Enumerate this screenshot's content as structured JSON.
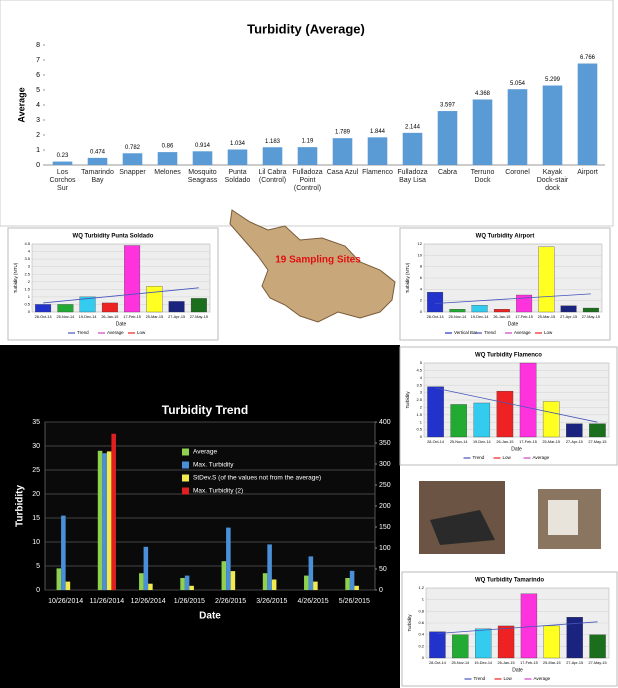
{
  "chart_data": [
    {
      "type": "bar",
      "title": "Turbidity (Average)",
      "y_label": "Average",
      "color": "#5b9bd5",
      "categories": [
        "Los Corchos Sur",
        "Tamarindo Bay",
        "Snapper",
        "Melones",
        "Mosquito Seagrass",
        "Punta Soldado",
        "Lil Cabra (Control)",
        "Fulladoza Point (Control)",
        "Casa Azul",
        "Flamenco",
        "Fulladoza Bay Lisa",
        "Cabra",
        "Terruno Dock",
        "Coronel",
        "Kayak Dock-stair dock",
        "Airport"
      ],
      "values": [
        0.23,
        0.474,
        0.782,
        0.86,
        0.914,
        1.034,
        1.183,
        1.19,
        1.789,
        1.844,
        2.144,
        3.597,
        4.368,
        5.054,
        5.299,
        6.766
      ],
      "ylim": [
        0,
        8
      ],
      "yticks": [
        0,
        1,
        2,
        3,
        4,
        5,
        6,
        7,
        8
      ]
    },
    {
      "type": "grouped_bar",
      "title": "Turbidity Trend",
      "x_label": "Date",
      "y_label": "Turbidity",
      "categories": [
        "10/26/2014",
        "11/26/2014",
        "12/26/2014",
        "1/26/2015",
        "2/26/2015",
        "3/26/2015",
        "4/26/2015",
        "5/26/2015"
      ],
      "series": [
        {
          "name": "Average",
          "color": "#8fd14f",
          "values": [
            4.5,
            29,
            3.5,
            2.5,
            6,
            3.5,
            3,
            2.5
          ]
        },
        {
          "name": "Max. Turbidity",
          "color": "#4a90d9",
          "values": [
            15.5,
            28.5,
            9,
            3,
            13,
            9.5,
            7,
            4
          ]
        },
        {
          "name": "StDev.S (of the values not from the average)",
          "color": "#f2e94e",
          "axis": "y2",
          "values": [
            20,
            330,
            15,
            10,
            45,
            25,
            20,
            10
          ]
        },
        {
          "name": "Max. Turbidity (2)",
          "color": "#e02020",
          "axis": "y2",
          "values": [
            null,
            372,
            null,
            null,
            null,
            null,
            null,
            null
          ]
        }
      ],
      "ylim": [
        0,
        35
      ],
      "yticks": [
        0,
        5,
        10,
        15,
        20,
        25,
        30,
        35
      ],
      "y2lim": [
        0,
        400
      ],
      "y2ticks": [
        0,
        50,
        100,
        150,
        200,
        250,
        300,
        350,
        400
      ],
      "grid": true
    },
    {
      "type": "bar",
      "title": "WQ Turbidity Punta Soldado",
      "x_label": "Date",
      "y_label": "Turbidity (NTU)",
      "categories": [
        "28-Oct-14",
        "25-Nov-14",
        "19-Dec-14",
        "26-Jan-15",
        "17-Feb-15",
        "25-Mar-15",
        "27-Apr-15",
        "27-May-15"
      ],
      "values": [
        0.5,
        0.5,
        1.0,
        0.6,
        4.4,
        1.7,
        0.7,
        0.9
      ],
      "colors": [
        "#2233cc",
        "#22aa33",
        "#33ccee",
        "#ee2222",
        "#ff33dd",
        "#ffff22",
        "#1a237e",
        "#1b6e1b"
      ],
      "ylim": [
        0,
        4.5
      ],
      "yticks": [
        0,
        0.5,
        1,
        1.5,
        2,
        2.5,
        3,
        3.5,
        4,
        4.5
      ],
      "trend": [
        0.6,
        1.6
      ],
      "legend": [
        "Trend",
        "Average",
        "Low"
      ],
      "legend_colors": [
        "#4455bb",
        "#cc44cc",
        "#ee2222"
      ]
    },
    {
      "type": "bar",
      "title": "WQ Turbidity Airport",
      "x_label": "Date",
      "y_label": "Turbidity (NTU)",
      "categories": [
        "28-Oct-14",
        "25-Nov-14",
        "19-Dec-14",
        "26-Jan-15",
        "17-Feb-15",
        "25-Mar-15",
        "27-Apr-15",
        "27-May-15"
      ],
      "values": [
        3.5,
        0.5,
        1.2,
        0.5,
        3.0,
        11.5,
        1.1,
        0.7
      ],
      "colors": [
        "#2233cc",
        "#22aa33",
        "#33ccee",
        "#ee2222",
        "#ff33dd",
        "#ffff22",
        "#1a237e",
        "#1b6e1b"
      ],
      "ylim": [
        0,
        12
      ],
      "yticks": [
        0,
        2,
        4,
        6,
        8,
        10,
        12
      ],
      "trend": [
        1.5,
        3.2
      ],
      "legend": [
        "Vertical Bar",
        "Trend",
        "Average",
        "Low"
      ],
      "legend_colors": [
        "#2233cc",
        "#4455bb",
        "#cc44cc",
        "#ee2222"
      ]
    },
    {
      "type": "bar",
      "title": "WQ Turbidity Flamenco",
      "x_label": "Date",
      "y_label": "Turbidity",
      "categories": [
        "28-Oct-14",
        "25-Nov-14",
        "19-Dec-14",
        "26-Jan-15",
        "17-Feb-15",
        "25-Mar-15",
        "27-Apr-15",
        "27-May-15"
      ],
      "values": [
        3.4,
        2.2,
        2.3,
        3.1,
        5.0,
        2.4,
        0.9,
        0.9
      ],
      "colors": [
        "#2233cc",
        "#22aa33",
        "#33ccee",
        "#ee2222",
        "#ff33dd",
        "#ffff22",
        "#1a237e",
        "#1b6e1b"
      ],
      "ylim": [
        0,
        5
      ],
      "yticks": [
        0,
        0.5,
        1,
        1.5,
        2,
        2.5,
        3,
        3.5,
        4,
        4.5,
        5
      ],
      "trend": [
        3.3,
        1.0
      ],
      "legend": [
        "Trend",
        "Low",
        "Average"
      ],
      "legend_colors": [
        "#4455bb",
        "#ee2222",
        "#cc44cc"
      ]
    },
    {
      "type": "bar",
      "title": "WQ Turbidity Tamarindo",
      "x_label": "Date",
      "y_label": "Turbidity",
      "categories": [
        "28-Oct-14",
        "25-Nov-14",
        "19-Dec-14",
        "26-Jan-15",
        "17-Feb-15",
        "25-Mar-15",
        "27-Apr-15",
        "27-May-15"
      ],
      "values": [
        0.45,
        0.4,
        0.5,
        0.55,
        1.1,
        0.55,
        0.7,
        0.4
      ],
      "colors": [
        "#2233cc",
        "#22aa33",
        "#33ccee",
        "#ee2222",
        "#ff33dd",
        "#ffff22",
        "#1a237e",
        "#1b6e1b"
      ],
      "ylim": [
        0,
        1.2
      ],
      "yticks": [
        0,
        0.2,
        0.4,
        0.6,
        0.8,
        1,
        1.2
      ],
      "trend": [
        0.42,
        0.62
      ],
      "legend": [
        "Trend",
        "Low",
        "Average"
      ],
      "legend_colors": [
        "#4455bb",
        "#ee2222",
        "#cc44cc"
      ]
    }
  ],
  "map": {
    "label": "19 Sampling Sites"
  }
}
